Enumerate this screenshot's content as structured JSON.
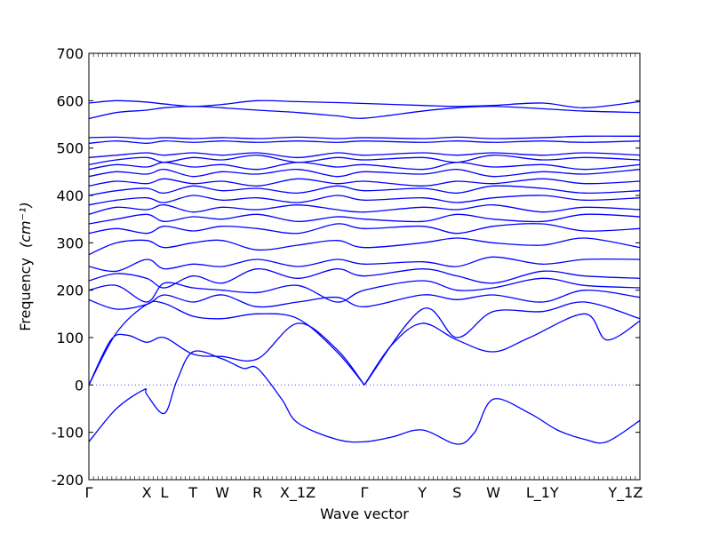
{
  "chart_data": {
    "type": "line",
    "title": "",
    "xlabel": "Wave vector",
    "ylabel": "Frequency",
    "ylabel_unit": "(cm⁻¹)",
    "ylim": [
      -200,
      700
    ],
    "yticks": [
      -200,
      -100,
      0,
      100,
      200,
      300,
      400,
      500,
      600,
      700
    ],
    "xlim": [
      0,
      1
    ],
    "x_tick_labels": [
      {
        "label": "Γ",
        "pos": 0.0
      },
      {
        "label": "X",
        "pos": 0.105
      },
      {
        "label": "L",
        "pos": 0.137
      },
      {
        "label": "T",
        "pos": 0.189
      },
      {
        "label": "W",
        "pos": 0.242
      },
      {
        "label": "R",
        "pos": 0.306
      },
      {
        "label": "X_1Z",
        "pos": 0.379
      },
      {
        "label": "Γ",
        "pos": 0.5
      },
      {
        "label": "Y",
        "pos": 0.605
      },
      {
        "label": "S",
        "pos": 0.668
      },
      {
        "label": "W",
        "pos": 0.734
      },
      {
        "label": "L_1Y",
        "pos": 0.823
      },
      {
        "label": "Y_1Z",
        "pos": 0.974
      }
    ],
    "zero_line": {
      "y": 0,
      "style": "dotted"
    },
    "series_color": "#0000ff",
    "series": [
      {
        "x": [
          0,
          0.05,
          0.1,
          0.105,
          0.137,
          0.16,
          0.189,
          0.242,
          0.28,
          0.306,
          0.35,
          0.379,
          0.45,
          0.5,
          0.55,
          0.605,
          0.668,
          0.7,
          0.734,
          0.8,
          0.85,
          0.9,
          0.94,
          1.0
        ],
        "y": [
          -120,
          -50,
          -10,
          -20,
          -60,
          10,
          70,
          55,
          35,
          35,
          -30,
          -80,
          -115,
          -120,
          -110,
          -95,
          -125,
          -100,
          -30,
          -60,
          -95,
          -115,
          -120,
          -75
        ]
      },
      {
        "x": [
          0,
          0.04,
          0.07,
          0.105,
          0.137,
          0.189,
          0.242,
          0.306,
          0.379,
          0.45,
          0.5
        ],
        "y": [
          0,
          95,
          105,
          90,
          100,
          65,
          60,
          55,
          130,
          75,
          0
        ]
      },
      {
        "x": [
          0.5,
          0.55,
          0.605,
          0.668,
          0.734,
          0.8,
          0.9,
          0.94,
          1.0
        ],
        "y": [
          0,
          85,
          130,
          95,
          70,
          100,
          150,
          95,
          135
        ]
      },
      {
        "x": [
          0,
          0.05,
          0.105,
          0.137,
          0.189,
          0.242,
          0.306,
          0.379,
          0.45,
          0.5
        ],
        "y": [
          0,
          110,
          170,
          172,
          145,
          140,
          150,
          140,
          70,
          0
        ]
      },
      {
        "x": [
          0.5,
          0.605,
          0.668,
          0.734,
          0.823,
          0.9,
          1.0
        ],
        "y": [
          0,
          160,
          100,
          155,
          155,
          175,
          140
        ]
      },
      {
        "x": [
          0,
          0.05,
          0.105,
          0.137,
          0.189,
          0.242,
          0.306,
          0.379,
          0.45,
          0.5,
          0.605,
          0.668,
          0.734,
          0.823,
          0.9,
          1.0
        ],
        "y": [
          180,
          160,
          170,
          190,
          175,
          190,
          165,
          175,
          185,
          165,
          190,
          180,
          190,
          175,
          200,
          185
        ]
      },
      {
        "x": [
          0,
          0.05,
          0.105,
          0.137,
          0.189,
          0.242,
          0.306,
          0.379,
          0.45,
          0.5,
          0.605,
          0.668,
          0.734,
          0.823,
          0.9,
          1.0
        ],
        "y": [
          200,
          210,
          175,
          215,
          205,
          200,
          195,
          210,
          175,
          200,
          220,
          200,
          205,
          225,
          210,
          205
        ]
      },
      {
        "x": [
          0,
          0.05,
          0.105,
          0.137,
          0.189,
          0.242,
          0.306,
          0.379,
          0.45,
          0.5,
          0.605,
          0.668,
          0.734,
          0.823,
          0.9,
          1.0
        ],
        "y": [
          220,
          235,
          225,
          205,
          230,
          215,
          245,
          225,
          245,
          230,
          245,
          230,
          215,
          240,
          230,
          225
        ]
      },
      {
        "x": [
          0,
          0.05,
          0.105,
          0.137,
          0.189,
          0.242,
          0.306,
          0.379,
          0.45,
          0.5,
          0.605,
          0.668,
          0.734,
          0.823,
          0.9,
          1.0
        ],
        "y": [
          250,
          240,
          265,
          245,
          255,
          250,
          265,
          250,
          265,
          255,
          260,
          250,
          270,
          255,
          265,
          265
        ]
      },
      {
        "x": [
          0,
          0.05,
          0.105,
          0.137,
          0.189,
          0.242,
          0.306,
          0.379,
          0.45,
          0.5,
          0.605,
          0.668,
          0.734,
          0.823,
          0.9,
          1.0
        ],
        "y": [
          275,
          300,
          305,
          290,
          300,
          305,
          285,
          295,
          305,
          290,
          300,
          310,
          300,
          295,
          310,
          290
        ]
      },
      {
        "x": [
          0,
          0.05,
          0.105,
          0.137,
          0.189,
          0.242,
          0.306,
          0.379,
          0.45,
          0.5,
          0.605,
          0.668,
          0.734,
          0.823,
          0.9,
          1.0
        ],
        "y": [
          320,
          330,
          320,
          335,
          325,
          335,
          330,
          320,
          340,
          330,
          335,
          320,
          335,
          340,
          325,
          330
        ]
      },
      {
        "x": [
          0,
          0.05,
          0.105,
          0.137,
          0.189,
          0.242,
          0.306,
          0.379,
          0.45,
          0.5,
          0.605,
          0.668,
          0.734,
          0.823,
          0.9,
          1.0
        ],
        "y": [
          340,
          350,
          360,
          345,
          355,
          350,
          360,
          345,
          355,
          350,
          345,
          360,
          350,
          345,
          360,
          355
        ]
      },
      {
        "x": [
          0,
          0.05,
          0.105,
          0.137,
          0.189,
          0.242,
          0.306,
          0.379,
          0.45,
          0.5,
          0.605,
          0.668,
          0.734,
          0.823,
          0.9,
          1.0
        ],
        "y": [
          360,
          375,
          370,
          380,
          365,
          375,
          370,
          380,
          370,
          365,
          375,
          370,
          380,
          365,
          375,
          370
        ]
      },
      {
        "x": [
          0,
          0.05,
          0.105,
          0.137,
          0.189,
          0.242,
          0.306,
          0.379,
          0.45,
          0.5,
          0.605,
          0.668,
          0.734,
          0.823,
          0.9,
          1.0
        ],
        "y": [
          380,
          390,
          395,
          385,
          400,
          390,
          395,
          385,
          400,
          390,
          395,
          385,
          395,
          400,
          390,
          395
        ]
      },
      {
        "x": [
          0,
          0.05,
          0.105,
          0.137,
          0.189,
          0.242,
          0.306,
          0.379,
          0.45,
          0.5,
          0.605,
          0.668,
          0.734,
          0.823,
          0.9,
          1.0
        ],
        "y": [
          400,
          410,
          415,
          405,
          420,
          410,
          415,
          405,
          420,
          410,
          415,
          405,
          420,
          415,
          405,
          410
        ]
      },
      {
        "x": [
          0,
          0.05,
          0.105,
          0.137,
          0.189,
          0.242,
          0.306,
          0.379,
          0.45,
          0.5,
          0.605,
          0.668,
          0.734,
          0.823,
          0.9,
          1.0
        ],
        "y": [
          420,
          430,
          425,
          435,
          425,
          430,
          420,
          435,
          425,
          430,
          420,
          430,
          425,
          435,
          425,
          430
        ]
      },
      {
        "x": [
          0,
          0.05,
          0.105,
          0.137,
          0.189,
          0.242,
          0.306,
          0.379,
          0.45,
          0.5,
          0.605,
          0.668,
          0.734,
          0.823,
          0.9,
          1.0
        ],
        "y": [
          440,
          450,
          445,
          455,
          440,
          450,
          445,
          455,
          440,
          450,
          445,
          455,
          440,
          450,
          445,
          455
        ]
      },
      {
        "x": [
          0,
          0.05,
          0.105,
          0.137,
          0.189,
          0.242,
          0.306,
          0.379,
          0.45,
          0.5,
          0.605,
          0.668,
          0.734,
          0.823,
          0.9,
          1.0
        ],
        "y": [
          455,
          465,
          460,
          470,
          460,
          465,
          455,
          470,
          460,
          465,
          455,
          470,
          460,
          465,
          455,
          465
        ]
      },
      {
        "x": [
          0,
          0.05,
          0.105,
          0.137,
          0.189,
          0.242,
          0.306,
          0.379,
          0.45,
          0.5,
          0.605,
          0.668,
          0.734,
          0.823,
          0.9,
          1.0
        ],
        "y": [
          465,
          475,
          480,
          470,
          480,
          475,
          485,
          470,
          480,
          475,
          480,
          470,
          485,
          475,
          480,
          475
        ]
      },
      {
        "x": [
          0,
          0.05,
          0.105,
          0.137,
          0.189,
          0.242,
          0.306,
          0.379,
          0.45,
          0.5,
          0.605,
          0.668,
          0.734,
          0.823,
          0.9,
          1.0
        ],
        "y": [
          480,
          485,
          490,
          485,
          490,
          485,
          490,
          480,
          490,
          485,
          490,
          485,
          490,
          485,
          490,
          485
        ]
      },
      {
        "x": [
          0,
          0.05,
          0.105,
          0.137,
          0.189,
          0.242,
          0.306,
          0.379,
          0.45,
          0.5,
          0.605,
          0.668,
          0.734,
          0.823,
          0.9,
          1.0
        ],
        "y": [
          510,
          515,
          510,
          515,
          512,
          515,
          512,
          515,
          512,
          515,
          512,
          515,
          512,
          515,
          512,
          515
        ]
      },
      {
        "x": [
          0,
          0.05,
          0.105,
          0.137,
          0.189,
          0.242,
          0.306,
          0.379,
          0.45,
          0.5,
          0.605,
          0.668,
          0.734,
          0.823,
          0.9,
          1.0
        ],
        "y": [
          522,
          523,
          520,
          522,
          520,
          522,
          520,
          523,
          520,
          522,
          520,
          523,
          520,
          522,
          525,
          525
        ]
      },
      {
        "x": [
          0,
          0.05,
          0.105,
          0.137,
          0.189,
          0.242,
          0.306,
          0.379,
          0.45,
          0.5,
          0.605,
          0.668,
          0.734,
          0.823,
          0.9,
          1.0
        ],
        "y": [
          562,
          575,
          580,
          585,
          588,
          585,
          580,
          575,
          568,
          563,
          578,
          585,
          588,
          583,
          578,
          575
        ]
      },
      {
        "x": [
          0,
          0.05,
          0.105,
          0.137,
          0.189,
          0.242,
          0.306,
          0.379,
          0.45,
          0.5,
          0.605,
          0.668,
          0.734,
          0.823,
          0.9,
          1.0
        ],
        "y": [
          595,
          600,
          597,
          593,
          588,
          592,
          600,
          598,
          596,
          594,
          590,
          588,
          590,
          595,
          585,
          598
        ]
      }
    ]
  }
}
